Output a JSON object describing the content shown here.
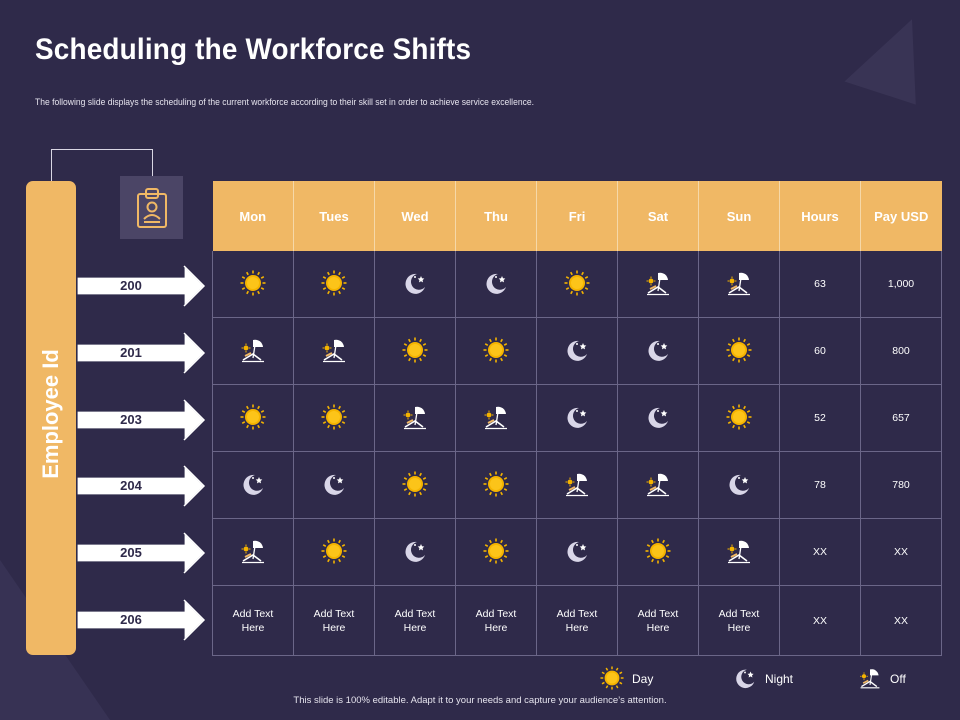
{
  "title": "Scheduling the Workforce Shifts",
  "subtitle": "The following slide displays the scheduling of the current workforce according to their skill set in order to achieve service excellence.",
  "employee_label": "Employee Id",
  "columns": [
    "Mon",
    "Tues",
    "Wed",
    "Thu",
    "Fri",
    "Sat",
    "Sun",
    "Hours",
    "Pay USD"
  ],
  "rows": [
    {
      "id": "200",
      "shifts": [
        "day",
        "day",
        "night",
        "night",
        "day",
        "off",
        "off"
      ],
      "hours": "63",
      "pay": "1,000"
    },
    {
      "id": "201",
      "shifts": [
        "off",
        "off",
        "day",
        "day",
        "night",
        "night",
        "day"
      ],
      "hours": "60",
      "pay": "800"
    },
    {
      "id": "203",
      "shifts": [
        "day",
        "day",
        "off",
        "off",
        "night",
        "night",
        "day"
      ],
      "hours": "52",
      "pay": "657"
    },
    {
      "id": "204",
      "shifts": [
        "night",
        "night",
        "day",
        "day",
        "off",
        "off",
        "night"
      ],
      "hours": "78",
      "pay": "780"
    },
    {
      "id": "205",
      "shifts": [
        "off",
        "day",
        "night",
        "day",
        "night",
        "day",
        "off"
      ],
      "hours": "XX",
      "pay": "XX"
    },
    {
      "id": "206",
      "shifts": [
        "text",
        "text",
        "text",
        "text",
        "text",
        "text",
        "text"
      ],
      "hours": "XX",
      "pay": "XX"
    }
  ],
  "placeholder_cell": [
    "Add Text",
    "Here"
  ],
  "legend": {
    "day": "Day",
    "night": "Night",
    "off": "Off"
  },
  "footer": "This slide is 100% editable.  Adapt it to your needs and capture your audience’s attention.",
  "colors": {
    "background": "#2f2a4a",
    "accent": "#f0b865",
    "sun": "#f5b400",
    "moon": "#d9d6e8"
  }
}
